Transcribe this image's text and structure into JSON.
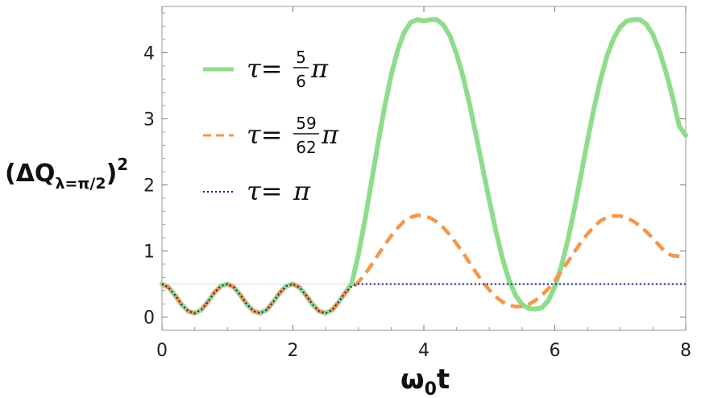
{
  "chart_data": {
    "type": "line",
    "xlabel": {
      "main": "ω",
      "sub": "0",
      "tail": "t"
    },
    "ylabel": {
      "open": "(ΔQ",
      "sub": "λ=π/2",
      "close": ")",
      "sup": "2"
    },
    "xlim": [
      0,
      8
    ],
    "ylim": [
      -0.2,
      4.7
    ],
    "xticks": [
      0,
      2,
      4,
      6,
      8
    ],
    "yticks": [
      0,
      1,
      2,
      3,
      4
    ],
    "grid": false,
    "legend_position": "top-left inside",
    "colors": {
      "green": "#8fdc8b",
      "orange": "#f5964a",
      "blue": "#1a1a9a",
      "reference_line": "#d9d9d9"
    },
    "reference_line_y": 0.5,
    "series": [
      {
        "legend": {
          "lead": "τ=",
          "num": "5",
          "den": "6",
          "tail": "π"
        },
        "style": "solid",
        "x": [
          0,
          0.1,
          0.2,
          0.3,
          0.4,
          0.5,
          0.6,
          0.7,
          0.8,
          0.9,
          1.0,
          1.1,
          1.2,
          1.3,
          1.4,
          1.5,
          1.6,
          1.7,
          1.8,
          1.9,
          2.0,
          2.1,
          2.2,
          2.3,
          2.4,
          2.5,
          2.6,
          2.7,
          2.8,
          2.9,
          3.0,
          3.1,
          3.2,
          3.3,
          3.4,
          3.5,
          3.6,
          3.7,
          3.8,
          3.9,
          4.0,
          4.1,
          4.2,
          4.3,
          4.4,
          4.5,
          4.6,
          4.7,
          4.8,
          4.9,
          5.0,
          5.1,
          5.2,
          5.3,
          5.4,
          5.5,
          5.6,
          5.7,
          5.8,
          5.9,
          6.0,
          6.1,
          6.2,
          6.3,
          6.4,
          6.5,
          6.6,
          6.7,
          6.8,
          6.9,
          7.0,
          7.1,
          7.2,
          7.3,
          7.4,
          7.5,
          7.6,
          7.7,
          7.8,
          7.9,
          8.0
        ],
        "y": [
          0.5,
          0.45,
          0.33,
          0.19,
          0.09,
          0.06,
          0.11,
          0.23,
          0.37,
          0.47,
          0.5,
          0.45,
          0.33,
          0.19,
          0.09,
          0.06,
          0.11,
          0.23,
          0.37,
          0.47,
          0.5,
          0.45,
          0.33,
          0.19,
          0.09,
          0.06,
          0.11,
          0.23,
          0.37,
          0.51,
          0.95,
          1.47,
          2.05,
          2.63,
          3.18,
          3.66,
          4.04,
          4.31,
          4.46,
          4.5,
          4.48,
          4.5,
          4.5,
          4.42,
          4.25,
          3.98,
          3.63,
          3.21,
          2.74,
          2.25,
          1.76,
          1.3,
          0.89,
          0.56,
          0.33,
          0.19,
          0.13,
          0.12,
          0.14,
          0.25,
          0.46,
          0.77,
          1.17,
          1.64,
          2.15,
          2.67,
          3.17,
          3.6,
          3.96,
          4.22,
          4.39,
          4.48,
          4.5,
          4.5,
          4.43,
          4.27,
          4.02,
          3.7,
          3.32,
          2.89,
          2.75
        ]
      },
      {
        "legend": {
          "lead": "τ=",
          "num": "59",
          "den": "62",
          "tail": "π"
        },
        "style": "dashed",
        "x": [
          0,
          0.1,
          0.2,
          0.3,
          0.4,
          0.5,
          0.6,
          0.7,
          0.8,
          0.9,
          1.0,
          1.1,
          1.2,
          1.3,
          1.4,
          1.5,
          1.6,
          1.7,
          1.8,
          1.9,
          2.0,
          2.1,
          2.2,
          2.3,
          2.4,
          2.5,
          2.6,
          2.7,
          2.8,
          2.9,
          3.0,
          3.1,
          3.2,
          3.3,
          3.4,
          3.5,
          3.6,
          3.7,
          3.8,
          3.9,
          4.0,
          4.1,
          4.2,
          4.3,
          4.4,
          4.5,
          4.6,
          4.7,
          4.8,
          4.9,
          5.0,
          5.1,
          5.2,
          5.3,
          5.4,
          5.5,
          5.6,
          5.7,
          5.8,
          5.9,
          6.0,
          6.1,
          6.2,
          6.3,
          6.4,
          6.5,
          6.6,
          6.7,
          6.8,
          6.9,
          7.0,
          7.1,
          7.2,
          7.3,
          7.4,
          7.5,
          7.6,
          7.7,
          7.8,
          7.9,
          8.0
        ],
        "y": [
          0.5,
          0.45,
          0.33,
          0.19,
          0.09,
          0.06,
          0.11,
          0.23,
          0.37,
          0.47,
          0.5,
          0.45,
          0.33,
          0.19,
          0.09,
          0.06,
          0.11,
          0.23,
          0.37,
          0.47,
          0.5,
          0.45,
          0.33,
          0.19,
          0.09,
          0.06,
          0.11,
          0.23,
          0.37,
          0.44,
          0.53,
          0.65,
          0.79,
          0.94,
          1.09,
          1.23,
          1.35,
          1.45,
          1.51,
          1.54,
          1.53,
          1.5,
          1.44,
          1.35,
          1.24,
          1.11,
          0.97,
          0.82,
          0.67,
          0.53,
          0.41,
          0.31,
          0.23,
          0.18,
          0.16,
          0.16,
          0.19,
          0.25,
          0.33,
          0.43,
          0.55,
          0.69,
          0.84,
          0.99,
          1.13,
          1.26,
          1.37,
          1.46,
          1.51,
          1.53,
          1.53,
          1.5,
          1.45,
          1.38,
          1.29,
          1.19,
          1.08,
          0.97,
          0.93,
          0.92,
          0.9
        ]
      },
      {
        "legend": {
          "lead": "τ=",
          "num": "",
          "den": "",
          "tail": "π"
        },
        "style": "dotted",
        "x": [
          0,
          0.1,
          0.2,
          0.3,
          0.4,
          0.5,
          0.6,
          0.7,
          0.8,
          0.9,
          1.0,
          1.1,
          1.2,
          1.3,
          1.4,
          1.5,
          1.6,
          1.7,
          1.8,
          1.9,
          2.0,
          2.1,
          2.2,
          2.3,
          2.4,
          2.5,
          2.6,
          2.7,
          2.8,
          2.9,
          3.0,
          8.0
        ],
        "y": [
          0.5,
          0.45,
          0.33,
          0.19,
          0.09,
          0.06,
          0.11,
          0.23,
          0.37,
          0.47,
          0.5,
          0.45,
          0.33,
          0.19,
          0.09,
          0.06,
          0.11,
          0.23,
          0.37,
          0.47,
          0.5,
          0.45,
          0.33,
          0.19,
          0.09,
          0.06,
          0.11,
          0.23,
          0.37,
          0.47,
          0.5,
          0.5
        ]
      }
    ]
  }
}
